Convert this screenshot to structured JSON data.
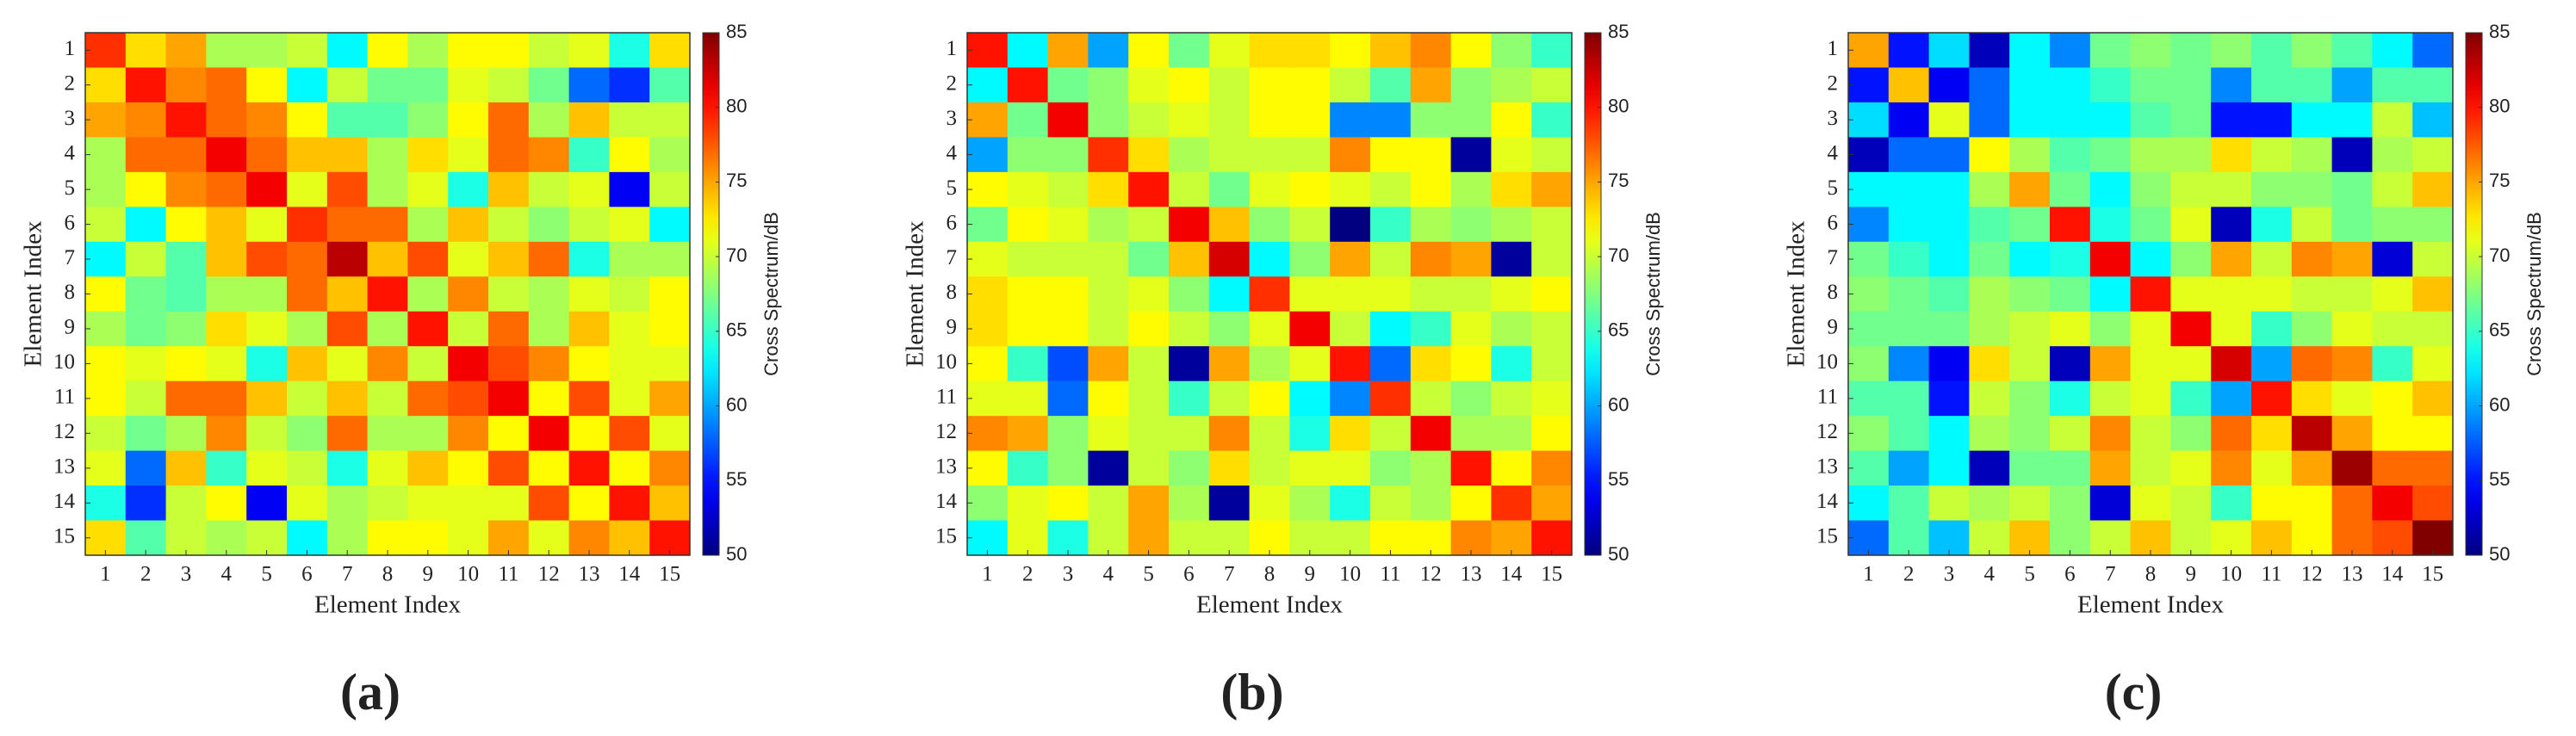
{
  "chart_data": [
    {
      "type": "heatmap",
      "caption": "(a)",
      "x_label": "Element Index",
      "y_label": "Element Index",
      "colorbar_label": "Cross Spectrum/dB",
      "colormap": "jet",
      "x": [
        1,
        2,
        3,
        4,
        5,
        6,
        7,
        8,
        9,
        10,
        11,
        12,
        13,
        14,
        15
      ],
      "y": [
        1,
        2,
        3,
        4,
        5,
        6,
        7,
        8,
        9,
        10,
        11,
        12,
        13,
        14,
        15
      ],
      "zlim": [
        50,
        85
      ],
      "zticks": [
        50,
        55,
        60,
        65,
        70,
        75,
        80,
        85
      ],
      "values": [
        [
          79,
          73,
          75,
          69,
          69,
          70,
          63,
          72,
          69,
          72,
          72,
          70,
          71,
          64,
          73
        ],
        [
          73,
          80,
          76,
          77,
          72,
          63,
          70,
          67,
          67,
          71,
          70,
          67,
          58,
          56,
          66
        ],
        [
          75,
          76,
          80,
          77,
          76,
          72,
          66,
          66,
          68,
          72,
          77,
          69,
          74,
          70,
          70
        ],
        [
          69,
          77,
          77,
          81,
          77,
          74,
          74,
          69,
          73,
          71,
          77,
          76,
          65,
          72,
          69
        ],
        [
          69,
          72,
          76,
          77,
          81,
          71,
          78,
          69,
          71,
          64,
          74,
          70,
          71,
          54,
          70
        ],
        [
          70,
          63,
          72,
          74,
          71,
          79,
          77,
          77,
          69,
          74,
          70,
          68,
          70,
          71,
          63
        ],
        [
          63,
          70,
          66,
          74,
          78,
          77,
          83,
          74,
          78,
          71,
          74,
          77,
          64,
          69,
          69
        ],
        [
          72,
          67,
          66,
          69,
          69,
          77,
          74,
          80,
          69,
          76,
          70,
          69,
          71,
          70,
          72
        ],
        [
          69,
          67,
          68,
          73,
          71,
          69,
          78,
          69,
          80,
          70,
          77,
          69,
          74,
          71,
          72
        ],
        [
          72,
          71,
          72,
          71,
          64,
          74,
          71,
          76,
          70,
          81,
          78,
          76,
          72,
          71,
          71
        ],
        [
          72,
          70,
          77,
          77,
          74,
          70,
          74,
          70,
          77,
          78,
          81,
          72,
          78,
          71,
          75
        ],
        [
          70,
          67,
          69,
          76,
          70,
          68,
          77,
          69,
          69,
          76,
          72,
          81,
          72,
          78,
          71
        ],
        [
          71,
          58,
          74,
          65,
          71,
          70,
          64,
          71,
          74,
          72,
          78,
          72,
          80,
          72,
          76
        ],
        [
          64,
          56,
          70,
          72,
          54,
          71,
          69,
          70,
          71,
          71,
          71,
          78,
          72,
          80,
          74
        ],
        [
          73,
          66,
          70,
          69,
          70,
          63,
          69,
          72,
          72,
          71,
          75,
          71,
          76,
          74,
          80
        ]
      ]
    },
    {
      "type": "heatmap",
      "caption": "(b)",
      "x_label": "Element Index",
      "y_label": "Element Index",
      "colorbar_label": "Cross Spectrum/dB",
      "colormap": "jet",
      "x": [
        1,
        2,
        3,
        4,
        5,
        6,
        7,
        8,
        9,
        10,
        11,
        12,
        13,
        14,
        15
      ],
      "y": [
        1,
        2,
        3,
        4,
        5,
        6,
        7,
        8,
        9,
        10,
        11,
        12,
        13,
        14,
        15
      ],
      "zlim": [
        50,
        85
      ],
      "zticks": [
        50,
        55,
        60,
        65,
        70,
        75,
        80,
        85
      ],
      "values": [
        [
          80,
          63,
          75,
          60,
          72,
          67,
          71,
          73,
          73,
          72,
          74,
          76,
          72,
          68,
          65
        ],
        [
          63,
          80,
          67,
          68,
          71,
          72,
          70,
          72,
          72,
          70,
          66,
          75,
          68,
          69,
          70
        ],
        [
          75,
          67,
          81,
          68,
          70,
          71,
          70,
          72,
          72,
          59,
          59,
          68,
          68,
          72,
          65
        ],
        [
          60,
          68,
          68,
          79,
          73,
          69,
          70,
          70,
          70,
          76,
          72,
          72,
          51,
          71,
          70
        ],
        [
          72,
          71,
          70,
          73,
          80,
          70,
          67,
          71,
          72,
          71,
          70,
          72,
          69,
          73,
          75
        ],
        [
          67,
          72,
          71,
          69,
          70,
          81,
          74,
          68,
          70,
          50,
          65,
          69,
          68,
          69,
          70
        ],
        [
          71,
          70,
          70,
          70,
          67,
          74,
          82,
          63,
          68,
          75,
          70,
          76,
          75,
          51,
          70
        ],
        [
          73,
          72,
          72,
          70,
          71,
          68,
          63,
          79,
          71,
          71,
          71,
          70,
          70,
          71,
          72
        ],
        [
          73,
          72,
          72,
          70,
          72,
          70,
          68,
          71,
          81,
          70,
          63,
          65,
          71,
          69,
          70
        ],
        [
          72,
          65,
          57,
          75,
          70,
          51,
          75,
          69,
          71,
          80,
          58,
          73,
          72,
          64,
          70
        ],
        [
          71,
          71,
          58,
          72,
          70,
          65,
          70,
          72,
          63,
          59,
          79,
          70,
          68,
          70,
          71
        ],
        [
          76,
          75,
          68,
          71,
          70,
          70,
          76,
          70,
          64,
          73,
          70,
          81,
          69,
          69,
          72
        ],
        [
          72,
          65,
          68,
          51,
          70,
          68,
          73,
          70,
          71,
          71,
          68,
          69,
          80,
          72,
          76
        ],
        [
          68,
          71,
          72,
          70,
          75,
          69,
          51,
          71,
          69,
          64,
          70,
          69,
          72,
          79,
          75
        ],
        [
          63,
          71,
          64,
          70,
          75,
          70,
          70,
          72,
          70,
          70,
          72,
          72,
          76,
          75,
          80
        ]
      ]
    },
    {
      "type": "heatmap",
      "caption": "(c)",
      "x_label": "Element Index",
      "y_label": "Element Index",
      "colorbar_label": "Cross Spectrum/dB",
      "colormap": "jet",
      "x": [
        1,
        2,
        3,
        4,
        5,
        6,
        7,
        8,
        9,
        10,
        11,
        12,
        13,
        14,
        15
      ],
      "y": [
        1,
        2,
        3,
        4,
        5,
        6,
        7,
        8,
        9,
        10,
        11,
        12,
        13,
        14,
        15
      ],
      "zlim": [
        50,
        85
      ],
      "zticks": [
        50,
        55,
        60,
        65,
        70,
        75,
        80,
        85
      ],
      "values": [
        [
          75,
          55,
          62,
          52,
          63,
          59,
          67,
          68,
          67,
          68,
          66,
          68,
          66,
          63,
          58
        ],
        [
          55,
          74,
          54,
          58,
          63,
          63,
          65,
          67,
          67,
          59,
          66,
          66,
          60,
          66,
          66
        ],
        [
          62,
          54,
          71,
          58,
          63,
          63,
          63,
          66,
          67,
          55,
          55,
          63,
          63,
          70,
          61
        ],
        [
          52,
          58,
          58,
          72,
          69,
          66,
          67,
          69,
          69,
          73,
          70,
          69,
          52,
          69,
          70
        ],
        [
          63,
          63,
          63,
          69,
          75,
          67,
          63,
          68,
          70,
          70,
          68,
          68,
          67,
          70,
          74
        ],
        [
          59,
          63,
          63,
          66,
          67,
          80,
          64,
          67,
          71,
          52,
          64,
          70,
          67,
          68,
          68
        ],
        [
          67,
          65,
          63,
          67,
          63,
          64,
          81,
          63,
          68,
          75,
          70,
          76,
          75,
          53,
          70
        ],
        [
          68,
          67,
          66,
          69,
          68,
          67,
          63,
          80,
          71,
          71,
          71,
          70,
          70,
          71,
          74
        ],
        [
          67,
          67,
          67,
          69,
          70,
          71,
          68,
          71,
          81,
          71,
          65,
          68,
          71,
          70,
          70
        ],
        [
          68,
          59,
          54,
          73,
          70,
          52,
          75,
          71,
          71,
          82,
          60,
          77,
          76,
          65,
          71
        ],
        [
          66,
          66,
          55,
          70,
          68,
          64,
          70,
          71,
          65,
          60,
          80,
          73,
          71,
          72,
          74
        ],
        [
          68,
          66,
          63,
          69,
          68,
          70,
          76,
          70,
          68,
          77,
          73,
          83,
          75,
          72,
          72
        ],
        [
          66,
          60,
          63,
          52,
          67,
          67,
          75,
          70,
          71,
          76,
          71,
          75,
          84,
          77,
          77
        ],
        [
          63,
          66,
          70,
          69,
          70,
          68,
          53,
          71,
          70,
          65,
          72,
          72,
          77,
          81,
          78
        ],
        [
          58,
          66,
          61,
          70,
          74,
          68,
          70,
          74,
          70,
          71,
          74,
          72,
          77,
          78,
          85
        ]
      ]
    }
  ]
}
